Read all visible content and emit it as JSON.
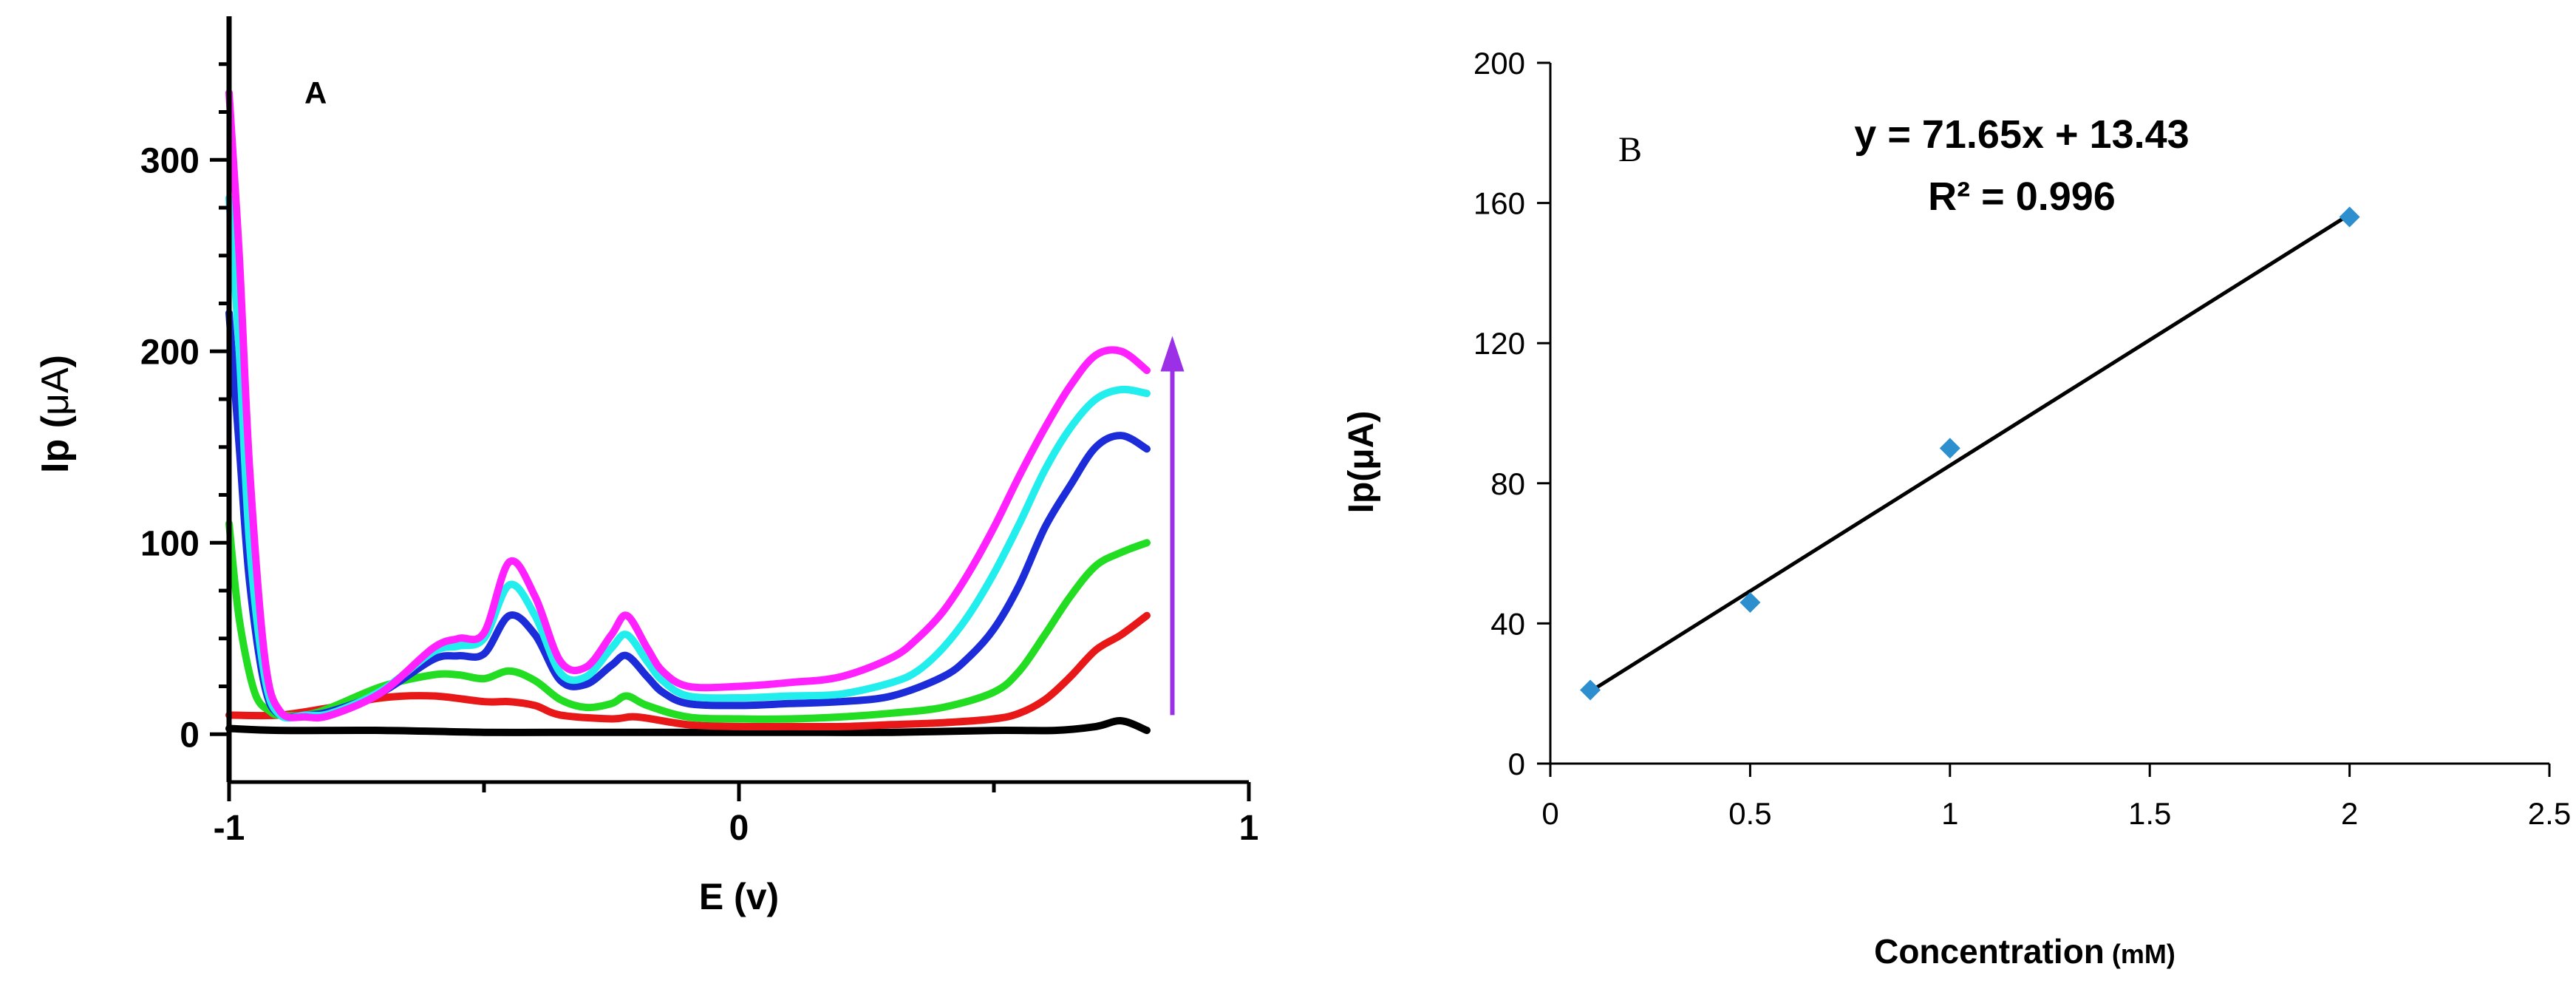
{
  "chart_data": [
    {
      "id": "A",
      "type": "line",
      "panel_label": "A",
      "xlabel": "E (v)",
      "ylabel_prefix": "Ip (",
      "ylabel_unit": "μA",
      "ylabel_suffix": ")",
      "xlim": [
        -1,
        1
      ],
      "ylim": [
        -25,
        375
      ],
      "xticks": [
        -1,
        0,
        1
      ],
      "xtick_labels": [
        "-1",
        "0",
        "1"
      ],
      "yticks": [
        0,
        100,
        200,
        300
      ],
      "ytick_labels": [
        "0",
        "100",
        "200",
        "300"
      ],
      "grid": false,
      "annotation": {
        "type": "arrow",
        "direction": "up",
        "x": 0.85,
        "y_from": 10,
        "y_to": 208,
        "color": "#9b30e6",
        "meaning": "increasing concentration"
      },
      "series": [
        {
          "name": "black",
          "color": "#000000",
          "x": [
            -1.0,
            -0.9,
            -0.7,
            -0.5,
            -0.3,
            -0.1,
            0.1,
            0.3,
            0.5,
            0.62,
            0.7,
            0.75,
            0.8
          ],
          "y": [
            3,
            2,
            2,
            1,
            1,
            1,
            1,
            1,
            2,
            2,
            4,
            7,
            2
          ]
        },
        {
          "name": "red",
          "color": "#e81818",
          "x": [
            -1.0,
            -0.9,
            -0.8,
            -0.7,
            -0.6,
            -0.5,
            -0.45,
            -0.4,
            -0.35,
            -0.25,
            -0.2,
            -0.1,
            0.0,
            0.1,
            0.2,
            0.3,
            0.4,
            0.5,
            0.55,
            0.6,
            0.65,
            0.7,
            0.75,
            0.8
          ],
          "y": [
            10,
            10,
            14,
            19,
            20,
            17,
            17,
            15,
            10,
            8,
            9,
            5,
            4,
            4,
            4,
            5,
            6,
            8,
            11,
            18,
            30,
            44,
            52,
            62
          ]
        },
        {
          "name": "green",
          "color": "#22dd22",
          "x": [
            -1.0,
            -0.98,
            -0.95,
            -0.92,
            -0.9,
            -0.85,
            -0.8,
            -0.7,
            -0.6,
            -0.55,
            -0.5,
            -0.45,
            -0.4,
            -0.35,
            -0.3,
            -0.25,
            -0.22,
            -0.18,
            -0.1,
            0.0,
            0.1,
            0.2,
            0.3,
            0.4,
            0.5,
            0.55,
            0.6,
            0.65,
            0.7,
            0.75,
            0.8
          ],
          "y": [
            110,
            60,
            22,
            12,
            10,
            10,
            14,
            25,
            31,
            31,
            29,
            33,
            28,
            18,
            14,
            16,
            20,
            15,
            9,
            8,
            8,
            9,
            11,
            14,
            22,
            33,
            52,
            72,
            88,
            95,
            100
          ]
        },
        {
          "name": "blue",
          "color": "#1c2cd8",
          "x": [
            -1.0,
            -0.98,
            -0.96,
            -0.93,
            -0.9,
            -0.85,
            -0.8,
            -0.7,
            -0.6,
            -0.55,
            -0.5,
            -0.45,
            -0.4,
            -0.35,
            -0.3,
            -0.25,
            -0.22,
            -0.18,
            -0.15,
            -0.1,
            0.0,
            0.1,
            0.2,
            0.3,
            0.4,
            0.45,
            0.5,
            0.55,
            0.6,
            0.65,
            0.7,
            0.75,
            0.8
          ],
          "y": [
            220,
            150,
            80,
            25,
            10,
            10,
            12,
            22,
            39,
            41,
            42,
            62,
            52,
            28,
            26,
            36,
            41,
            30,
            22,
            16,
            15,
            16,
            17,
            20,
            30,
            40,
            55,
            78,
            108,
            130,
            150,
            156,
            149
          ]
        },
        {
          "name": "cyan",
          "color": "#22eeee",
          "x": [
            -1.0,
            -0.98,
            -0.96,
            -0.93,
            -0.9,
            -0.85,
            -0.8,
            -0.7,
            -0.6,
            -0.55,
            -0.5,
            -0.45,
            -0.4,
            -0.35,
            -0.3,
            -0.25,
            -0.22,
            -0.18,
            -0.15,
            -0.1,
            0.0,
            0.1,
            0.2,
            0.3,
            0.35,
            0.4,
            0.45,
            0.5,
            0.55,
            0.6,
            0.65,
            0.7,
            0.75,
            0.8
          ],
          "y": [
            280,
            200,
            100,
            30,
            10,
            10,
            11,
            23,
            43,
            46,
            50,
            78,
            62,
            32,
            30,
            45,
            52,
            38,
            28,
            20,
            19,
            20,
            21,
            27,
            33,
            45,
            62,
            84,
            110,
            138,
            160,
            175,
            180,
            178
          ]
        },
        {
          "name": "magenta",
          "color": "#ff22ff",
          "x": [
            -1.0,
            -0.98,
            -0.96,
            -0.93,
            -0.9,
            -0.85,
            -0.8,
            -0.7,
            -0.6,
            -0.55,
            -0.5,
            -0.45,
            -0.4,
            -0.35,
            -0.3,
            -0.25,
            -0.22,
            -0.18,
            -0.15,
            -0.1,
            0.0,
            0.1,
            0.2,
            0.3,
            0.35,
            0.4,
            0.45,
            0.5,
            0.55,
            0.6,
            0.65,
            0.7,
            0.75,
            0.8
          ],
          "y": [
            335,
            250,
            140,
            40,
            12,
            9,
            10,
            22,
            45,
            50,
            53,
            90,
            72,
            38,
            35,
            52,
            62,
            45,
            33,
            25,
            25,
            27,
            30,
            40,
            50,
            64,
            84,
            108,
            135,
            160,
            182,
            198,
            200,
            190
          ]
        }
      ]
    },
    {
      "id": "B",
      "type": "scatter",
      "panel_label": "B",
      "xlabel": "Concentration",
      "xlabel_unit": "(mM)",
      "ylabel": "Ip(μA)",
      "xlim": [
        0,
        2.5
      ],
      "ylim": [
        0,
        200
      ],
      "xticks": [
        0,
        0.5,
        1,
        1.5,
        2,
        2.5
      ],
      "xtick_labels": [
        "0",
        "0.5",
        "1",
        "1.5",
        "2",
        "2.5"
      ],
      "yticks": [
        0,
        40,
        80,
        120,
        160,
        200
      ],
      "ytick_labels": [
        "0",
        "40",
        "80",
        "120",
        "160",
        "200"
      ],
      "grid": false,
      "series": [
        {
          "name": "data",
          "color": "#2e8fcf",
          "marker": "diamond",
          "x": [
            0.1,
            0.5,
            1.0,
            2.0
          ],
          "y": [
            21,
            46,
            90,
            156
          ]
        }
      ],
      "trendline": {
        "slope": 71.65,
        "intercept": 13.43,
        "x_range": [
          0.1,
          2.0
        ],
        "color": "#000000"
      },
      "equation": "y = 71.65x + 13.43",
      "r_squared": "R² = 0.996"
    }
  ]
}
